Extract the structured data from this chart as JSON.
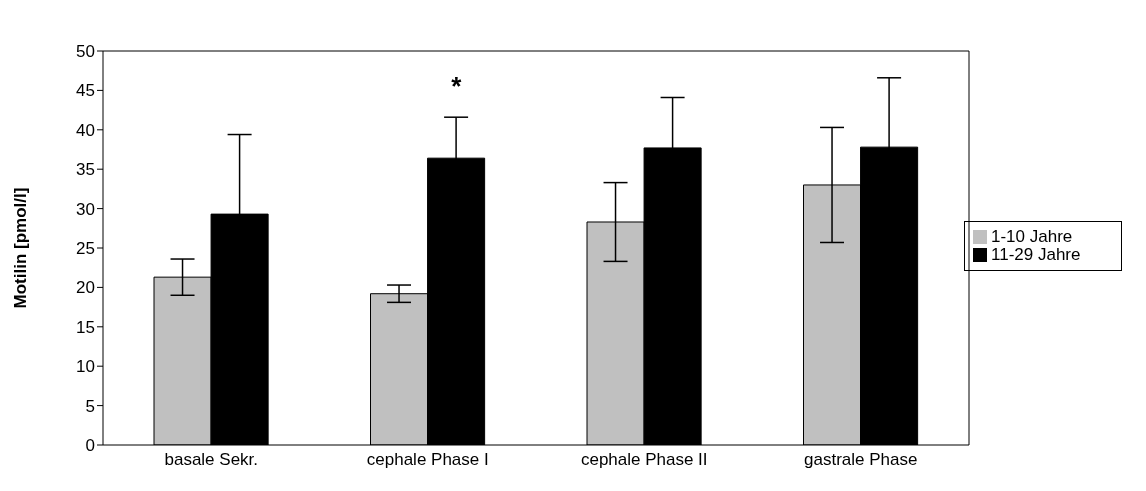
{
  "chart_data": {
    "type": "bar",
    "ylabel": "Motilin [pmol/l]",
    "categories": [
      "basale Sekr.",
      "cephale Phase I",
      "cephale Phase II",
      "gastrale Phase"
    ],
    "series": [
      {
        "name": "1-10 Jahre",
        "color": "#c0c0c0",
        "values": [
          21.3,
          19.2,
          28.3,
          33.0
        ],
        "errors": [
          2.3,
          1.1,
          5.0,
          7.3
        ]
      },
      {
        "name": "11-29 Jahre",
        "color": "#000000",
        "values": [
          29.3,
          36.4,
          37.7,
          37.8
        ],
        "errors": [
          10.1,
          5.2,
          6.4,
          8.8
        ]
      }
    ],
    "ylim": [
      0,
      50
    ],
    "yticks": [
      0,
      5,
      10,
      15,
      20,
      25,
      30,
      35,
      40,
      45,
      50
    ],
    "grid": false,
    "legend": "right",
    "annotations": [
      "*"
    ]
  }
}
